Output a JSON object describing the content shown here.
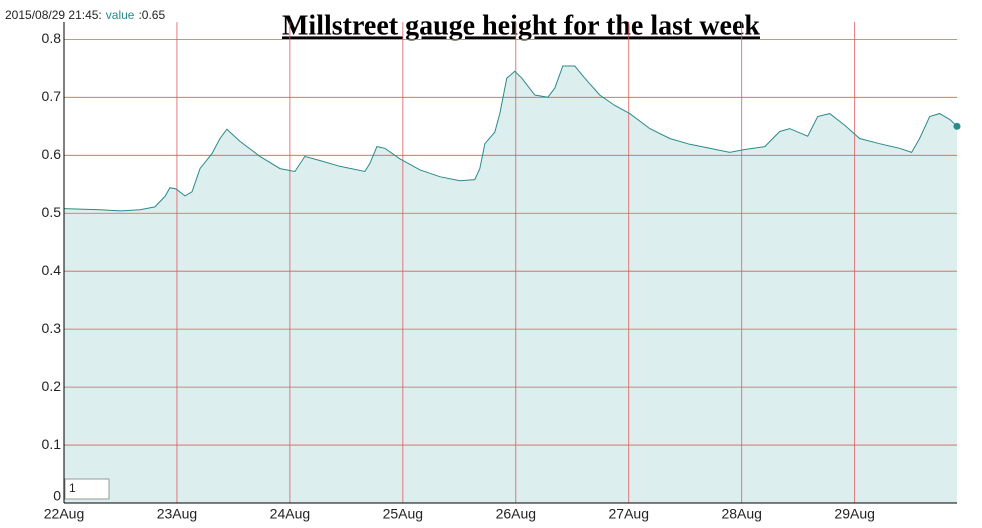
{
  "chart_data": {
    "type": "area",
    "title": "Millstreet gauge height for the last week",
    "highlight": {
      "time": "2015/08/29 21:45:",
      "value": 0.65,
      "value_label": ":0.65"
    },
    "roll_period": "1",
    "series": [
      {
        "name": "value",
        "color": "#2a8a8a",
        "fill": "#ddeeee",
        "x": [
          22.0,
          22.319,
          22.496,
          22.673,
          22.805,
          22.894,
          22.938,
          22.991,
          23.071,
          23.133,
          23.204,
          23.31,
          23.381,
          23.442,
          23.558,
          23.735,
          23.912,
          24.044,
          24.133,
          24.265,
          24.442,
          24.664,
          24.708,
          24.77,
          24.841,
          24.973,
          25.15,
          25.327,
          25.504,
          25.637,
          25.681,
          25.726,
          25.814,
          25.858,
          25.92,
          25.991,
          26.053,
          26.168,
          26.283,
          26.345,
          26.416,
          26.522,
          26.611,
          26.743,
          26.876,
          27.009,
          27.186,
          27.363,
          27.54,
          27.717,
          27.894,
          28.027,
          28.204,
          28.336,
          28.425,
          28.584,
          28.673,
          28.779,
          28.912,
          29.044,
          29.221,
          29.398,
          29.504,
          29.575,
          29.664,
          29.752,
          29.841,
          29.906
        ],
        "values": [
          0.508,
          0.506,
          0.504,
          0.506,
          0.511,
          0.529,
          0.544,
          0.542,
          0.53,
          0.537,
          0.577,
          0.603,
          0.629,
          0.645,
          0.624,
          0.598,
          0.577,
          0.572,
          0.598,
          0.591,
          0.581,
          0.572,
          0.586,
          0.615,
          0.612,
          0.594,
          0.575,
          0.563,
          0.556,
          0.558,
          0.577,
          0.62,
          0.64,
          0.672,
          0.733,
          0.745,
          0.733,
          0.704,
          0.7,
          0.716,
          0.754,
          0.754,
          0.733,
          0.704,
          0.686,
          0.672,
          0.646,
          0.629,
          0.619,
          0.612,
          0.605,
          0.61,
          0.615,
          0.641,
          0.646,
          0.633,
          0.667,
          0.672,
          0.652,
          0.629,
          0.62,
          0.612,
          0.605,
          0.629,
          0.667,
          0.672,
          0.662,
          0.65
        ]
      }
    ],
    "xlim": [
      22,
      29.906
    ],
    "xticks": [
      {
        "value": 22,
        "label": "22Aug"
      },
      {
        "value": 23,
        "label": "23Aug"
      },
      {
        "value": 24,
        "label": "24Aug"
      },
      {
        "value": 25,
        "label": "25Aug"
      },
      {
        "value": 26,
        "label": "26Aug"
      },
      {
        "value": 27,
        "label": "27Aug"
      },
      {
        "value": 28,
        "label": "28Aug"
      },
      {
        "value": 29,
        "label": "29Aug"
      }
    ],
    "ylim": [
      0,
      0.83
    ],
    "yticks": [
      0,
      0.1,
      0.2,
      0.3,
      0.4,
      0.5,
      0.6,
      0.7,
      0.8
    ],
    "grid": true,
    "grid_color": "#e05a5a"
  }
}
